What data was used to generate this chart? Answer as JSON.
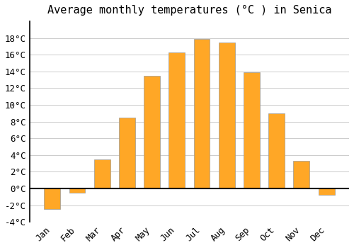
{
  "title": "Average monthly temperatures (°C ) in Senica",
  "months": [
    "Jan",
    "Feb",
    "Mar",
    "Apr",
    "May",
    "Jun",
    "Jul",
    "Aug",
    "Sep",
    "Oct",
    "Nov",
    "Dec"
  ],
  "values": [
    -2.5,
    -0.5,
    3.5,
    8.5,
    13.5,
    16.3,
    17.9,
    17.5,
    13.9,
    9.0,
    3.3,
    -0.8
  ],
  "bar_color": "#FFA726",
  "bar_edge_color": "#999999",
  "background_color": "#FFFFFF",
  "grid_color": "#CCCCCC",
  "ylim": [
    -4,
    20
  ],
  "yticks": [
    -4,
    -2,
    0,
    2,
    4,
    6,
    8,
    10,
    12,
    14,
    16,
    18
  ],
  "zero_line_color": "#000000",
  "title_fontsize": 11,
  "tick_fontsize": 9,
  "font_family": "monospace"
}
